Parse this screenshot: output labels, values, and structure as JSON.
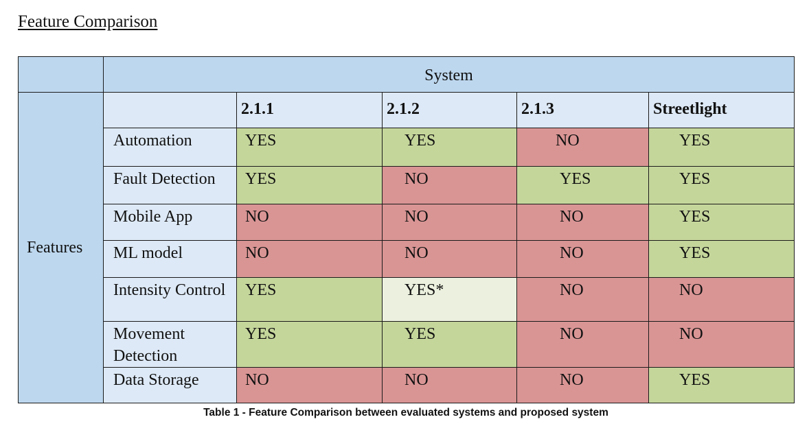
{
  "heading": "Feature Comparison",
  "table": {
    "group_header": "System",
    "row_group_label": "Features",
    "columns": [
      {
        "label": "2.1.1"
      },
      {
        "label": "2.1.2"
      },
      {
        "label": "2.1.3"
      },
      {
        "label": "Streetlight"
      }
    ],
    "rows": [
      {
        "feature": "Automation",
        "cells": [
          {
            "value": "YES",
            "status": "yes"
          },
          {
            "value": "YES",
            "status": "yes"
          },
          {
            "value": "NO",
            "status": "no"
          },
          {
            "value": "YES",
            "status": "yes"
          }
        ]
      },
      {
        "feature": "Fault Detection",
        "cells": [
          {
            "value": "YES",
            "status": "yes"
          },
          {
            "value": "NO",
            "status": "no"
          },
          {
            "value": "YES",
            "status": "yes"
          },
          {
            "value": "YES",
            "status": "yes"
          }
        ]
      },
      {
        "feature": "Mobile App",
        "cells": [
          {
            "value": "NO",
            "status": "no"
          },
          {
            "value": "NO",
            "status": "no"
          },
          {
            "value": "NO",
            "status": "no"
          },
          {
            "value": "YES",
            "status": "yes"
          }
        ]
      },
      {
        "feature": "ML model",
        "cells": [
          {
            "value": "NO",
            "status": "no"
          },
          {
            "value": "NO",
            "status": "no"
          },
          {
            "value": "NO",
            "status": "no"
          },
          {
            "value": "YES",
            "status": "yes"
          }
        ]
      },
      {
        "feature": "Intensity Control",
        "cells": [
          {
            "value": "YES",
            "status": "yes"
          },
          {
            "value": "YES*",
            "status": "partial"
          },
          {
            "value": "NO",
            "status": "no"
          },
          {
            "value": "NO",
            "status": "no"
          }
        ]
      },
      {
        "feature": "Movement Detection",
        "cells": [
          {
            "value": "YES",
            "status": "yes"
          },
          {
            "value": "YES",
            "status": "yes"
          },
          {
            "value": "NO",
            "status": "no"
          },
          {
            "value": "NO",
            "status": "no"
          }
        ]
      },
      {
        "feature": "Data Storage",
        "cells": [
          {
            "value": "NO",
            "status": "no"
          },
          {
            "value": "NO",
            "status": "no"
          },
          {
            "value": "NO",
            "status": "no"
          },
          {
            "value": "YES",
            "status": "yes"
          }
        ]
      }
    ]
  },
  "colors": {
    "header_blue": "#bdd7ee",
    "light_blue": "#dde9f6",
    "yes_green": "#c5d69b",
    "no_red": "#d99594",
    "partial_pale": "#ebf1de"
  },
  "caption": "Table 1 - Feature Comparison between evaluated systems and proposed system"
}
